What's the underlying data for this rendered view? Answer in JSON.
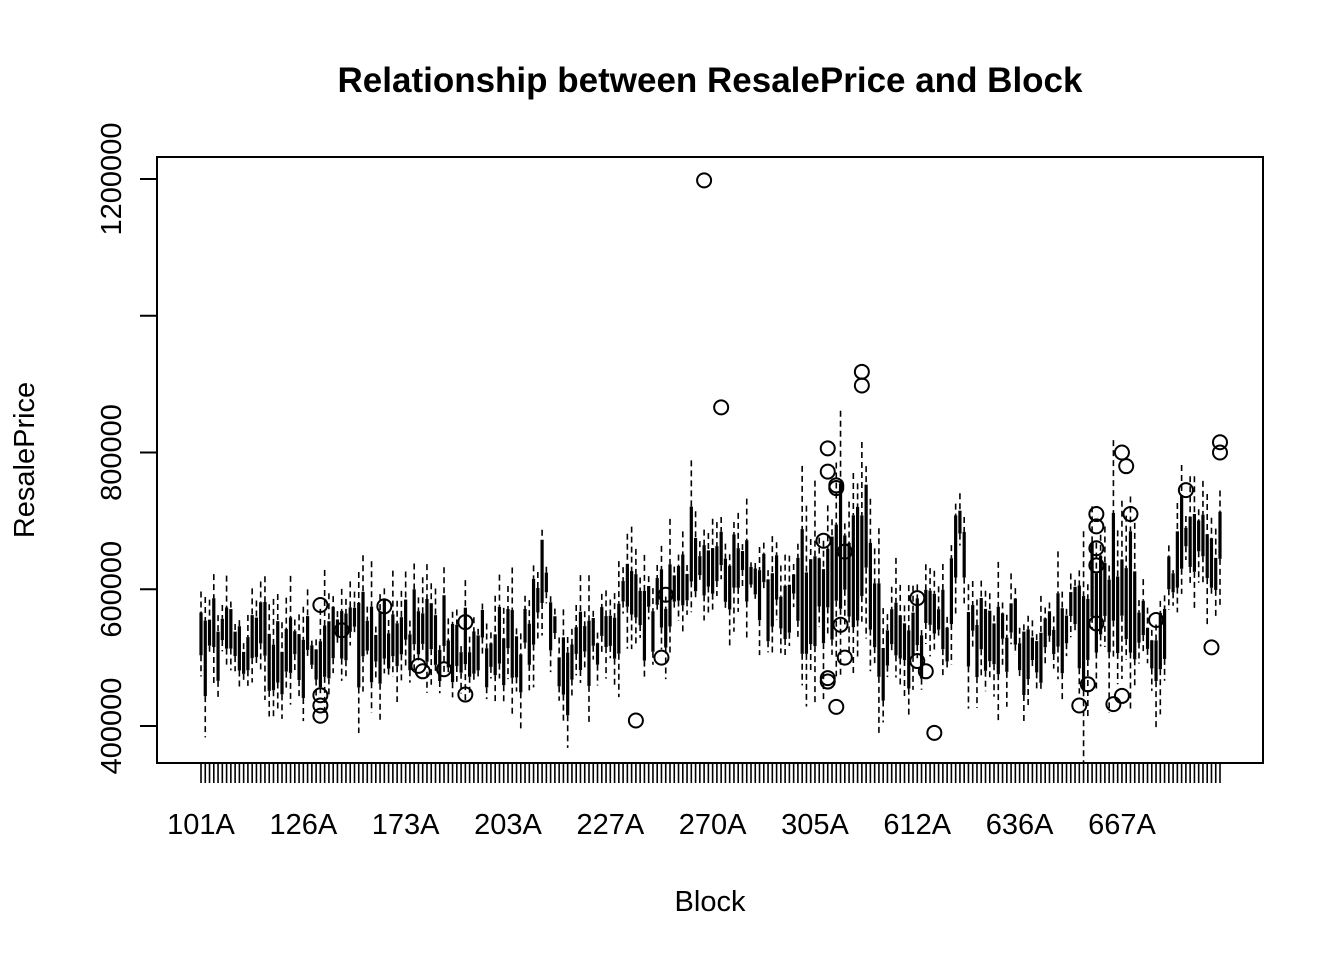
{
  "chart_data": {
    "type": "box",
    "title": "Relationship between ResalePrice and Block",
    "xlabel": "Block",
    "ylabel": "ResalePrice",
    "ylim": [
      380000,
      1230000
    ],
    "y_ticks": [
      400000,
      600000,
      800000,
      1000000,
      1200000
    ],
    "y_tick_labels": [
      "400000",
      "600000",
      "800000",
      "",
      "1200000"
    ],
    "x_tick_labels": [
      "101A",
      "126A",
      "173A",
      "203A",
      "227A",
      "270A",
      "305A",
      "612A",
      "636A",
      "667A"
    ],
    "n_boxes": 240,
    "grid": false,
    "legend": "none",
    "line_color": "#000000",
    "outliers": [
      {
        "box": 28,
        "values": [
          415000,
          430000,
          445000,
          577000
        ]
      },
      {
        "box": 33,
        "values": [
          540000
        ]
      },
      {
        "box": 43,
        "values": [
          575000
        ]
      },
      {
        "box": 51,
        "values": [
          488000
        ]
      },
      {
        "box": 52,
        "values": [
          480000
        ]
      },
      {
        "box": 57,
        "values": [
          483000
        ]
      },
      {
        "box": 62,
        "values": [
          552000
        ]
      },
      {
        "box": 62,
        "values": [
          446000
        ]
      },
      {
        "box": 102,
        "values": [
          408000
        ]
      },
      {
        "box": 108,
        "values": [
          500000
        ]
      },
      {
        "box": 109,
        "values": [
          592000
        ]
      },
      {
        "box": 118,
        "values": [
          1198000
        ]
      },
      {
        "box": 122,
        "values": [
          866000
        ]
      },
      {
        "box": 146,
        "values": [
          671000
        ]
      },
      {
        "box": 147,
        "values": [
          806000,
          772000,
          465000,
          470000
        ]
      },
      {
        "box": 149,
        "values": [
          752000,
          748000,
          428000
        ]
      },
      {
        "box": 150,
        "values": [
          548000
        ]
      },
      {
        "box": 151,
        "values": [
          500000,
          655000
        ]
      },
      {
        "box": 155,
        "values": [
          918000,
          898000
        ]
      },
      {
        "box": 168,
        "values": [
          587000,
          495000
        ]
      },
      {
        "box": 170,
        "values": [
          480000
        ]
      },
      {
        "box": 172,
        "values": [
          390000
        ]
      },
      {
        "box": 206,
        "values": [
          430000
        ]
      },
      {
        "box": 208,
        "values": [
          461000
        ]
      },
      {
        "box": 210,
        "values": [
          710000,
          692000,
          660000,
          635000,
          550000
        ]
      },
      {
        "box": 214,
        "values": [
          432000
        ]
      },
      {
        "box": 216,
        "values": [
          800000,
          444000
        ]
      },
      {
        "box": 217,
        "values": [
          780000
        ]
      },
      {
        "box": 218,
        "values": [
          710000
        ]
      },
      {
        "box": 224,
        "values": [
          555000
        ]
      },
      {
        "box": 231,
        "values": [
          745000
        ]
      },
      {
        "box": 237,
        "values": [
          515000
        ]
      },
      {
        "box": 239,
        "values": [
          815000,
          800000
        ]
      }
    ]
  }
}
